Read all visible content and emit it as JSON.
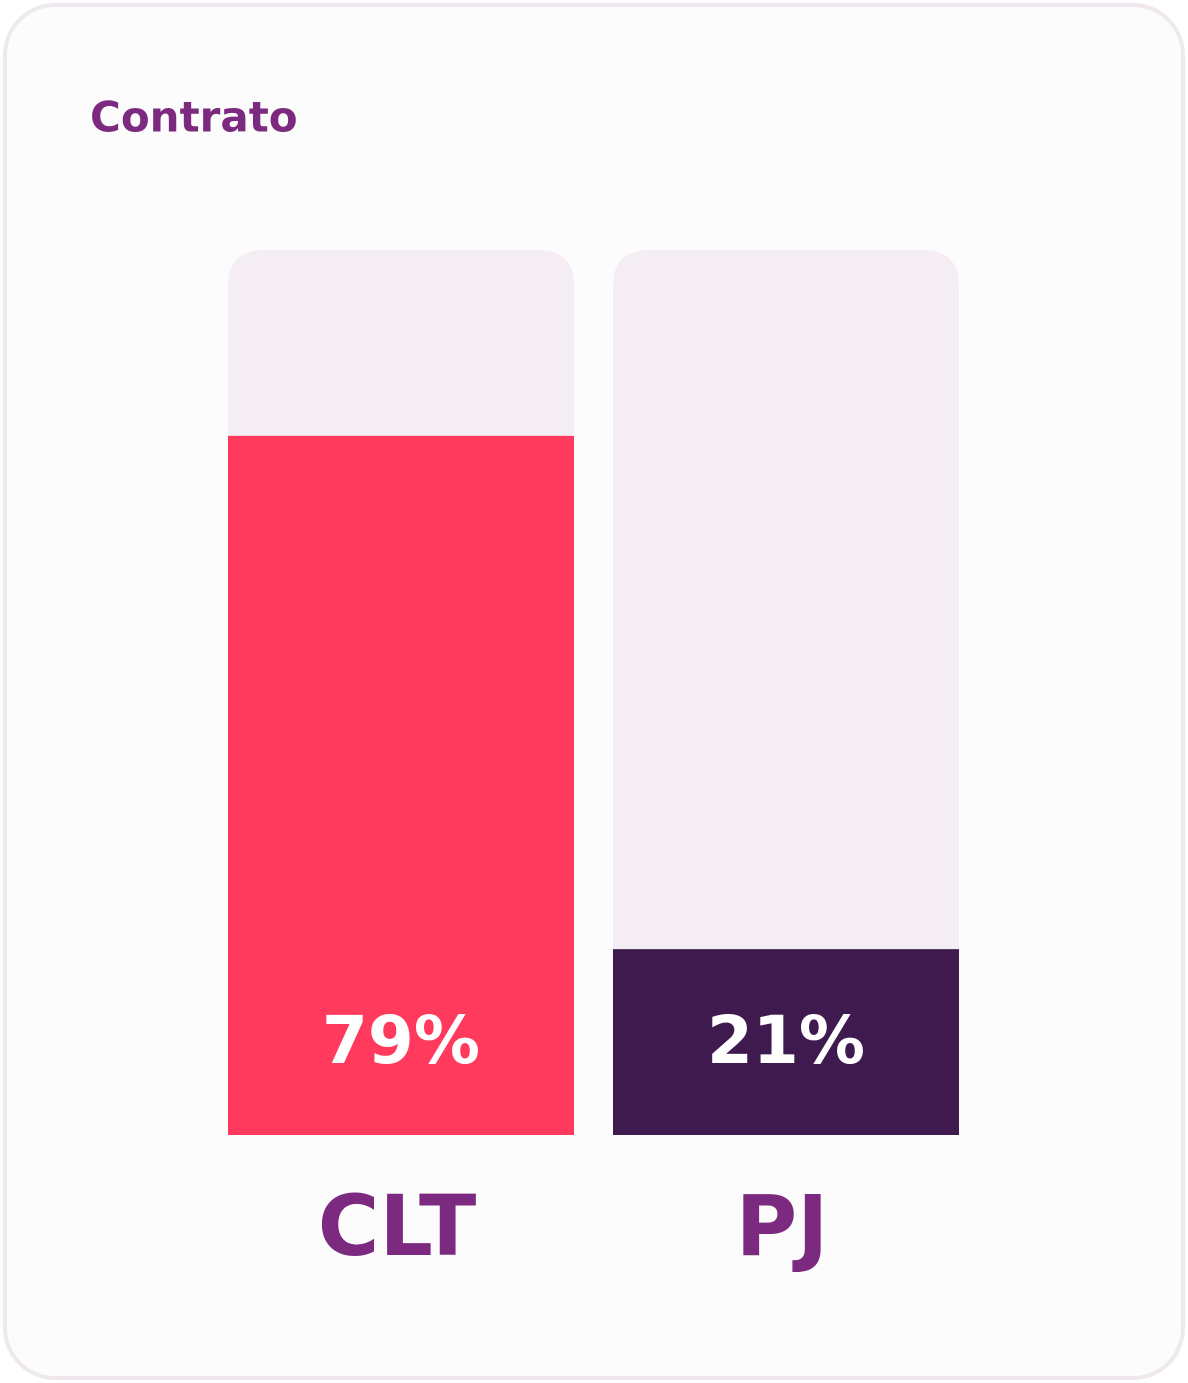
{
  "chart_data": {
    "type": "bar",
    "title": "Contrato",
    "categories": [
      "CLT",
      "PJ"
    ],
    "values": [
      79,
      21
    ],
    "value_labels": [
      "79%",
      "21%"
    ],
    "colors": [
      "#ff3a5c",
      "#3f1a4f"
    ],
    "track_color": "#f4eef4",
    "ylim": [
      0,
      100
    ]
  }
}
